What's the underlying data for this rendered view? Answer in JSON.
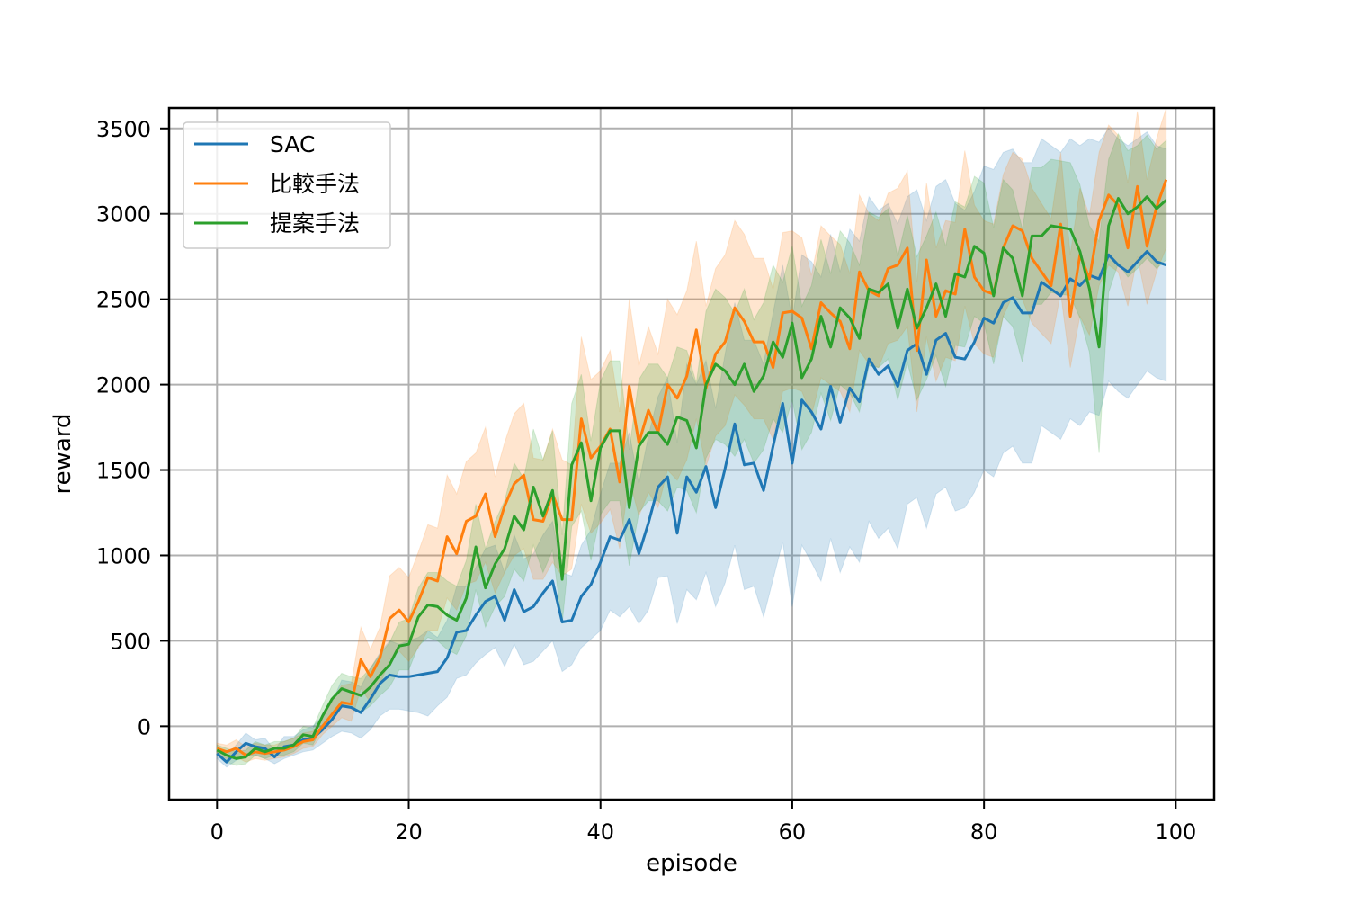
{
  "chart_data": {
    "type": "line",
    "title": "",
    "xlabel": "episode",
    "ylabel": "reward",
    "xlim": [
      -5,
      104
    ],
    "ylim": [
      -430,
      3620
    ],
    "xticks": [
      0,
      20,
      40,
      60,
      80,
      100
    ],
    "yticks": [
      0,
      500,
      1000,
      1500,
      2000,
      2500,
      3000,
      3500
    ],
    "grid": true,
    "legend_position": "top-left",
    "x": [
      0,
      1,
      2,
      3,
      4,
      5,
      6,
      7,
      8,
      9,
      10,
      11,
      12,
      13,
      14,
      15,
      16,
      17,
      18,
      19,
      20,
      21,
      22,
      23,
      24,
      25,
      26,
      27,
      28,
      29,
      30,
      31,
      32,
      33,
      34,
      35,
      36,
      37,
      38,
      39,
      40,
      41,
      42,
      43,
      44,
      45,
      46,
      47,
      48,
      49,
      50,
      51,
      52,
      53,
      54,
      55,
      56,
      57,
      58,
      59,
      60,
      61,
      62,
      63,
      64,
      65,
      66,
      67,
      68,
      69,
      70,
      71,
      72,
      73,
      74,
      75,
      76,
      77,
      78,
      79,
      80,
      81,
      82,
      83,
      84,
      85,
      86,
      87,
      88,
      89,
      90,
      91,
      92,
      93,
      94,
      95,
      96,
      97,
      98,
      99
    ],
    "series": [
      {
        "name": "SAC",
        "color": "#1f77b4",
        "values": [
          -160,
          -210,
          -150,
          -100,
          -120,
          -130,
          -180,
          -120,
          -110,
          -80,
          -70,
          -20,
          40,
          120,
          110,
          80,
          160,
          250,
          300,
          290,
          290,
          300,
          310,
          320,
          400,
          550,
          560,
          650,
          730,
          760,
          620,
          800,
          670,
          700,
          780,
          850,
          610,
          620,
          760,
          830,
          960,
          1110,
          1090,
          1210,
          1010,
          1190,
          1400,
          1460,
          1130,
          1460,
          1370,
          1520,
          1280,
          1510,
          1770,
          1530,
          1540,
          1380,
          1640,
          1890,
          1540,
          1910,
          1840,
          1740,
          1990,
          1780,
          1980,
          1900,
          2150,
          2060,
          2110,
          1990,
          2200,
          2240,
          2060,
          2260,
          2300,
          2160,
          2150,
          2250,
          2390,
          2360,
          2480,
          2510,
          2420,
          2420,
          2600,
          2560,
          2520,
          2620,
          2580,
          2640,
          2620,
          2760,
          2700,
          2660,
          2720,
          2780,
          2720,
          2700
        ],
        "lower": [
          -190,
          -240,
          -200,
          -170,
          -170,
          -190,
          -220,
          -190,
          -170,
          -150,
          -140,
          -100,
          -60,
          -30,
          -40,
          -70,
          -20,
          60,
          100,
          100,
          90,
          80,
          60,
          120,
          170,
          280,
          300,
          370,
          420,
          460,
          350,
          480,
          360,
          380,
          440,
          500,
          320,
          360,
          460,
          510,
          560,
          680,
          640,
          700,
          600,
          680,
          870,
          880,
          600,
          800,
          740,
          900,
          700,
          840,
          1060,
          800,
          820,
          640,
          860,
          1080,
          700,
          1060,
          960,
          850,
          1100,
          900,
          1050,
          960,
          1200,
          1100,
          1160,
          1040,
          1300,
          1340,
          1160,
          1360,
          1400,
          1260,
          1280,
          1370,
          1500,
          1460,
          1600,
          1640,
          1540,
          1540,
          1760,
          1720,
          1680,
          1800,
          1760,
          1840,
          1820,
          2020,
          1960,
          1920,
          2000,
          2080,
          2040,
          2020
        ],
        "upper": [
          -130,
          -170,
          -110,
          -40,
          -80,
          -70,
          -140,
          -60,
          -60,
          -20,
          0,
          60,
          140,
          270,
          260,
          230,
          340,
          430,
          500,
          480,
          500,
          520,
          560,
          520,
          620,
          820,
          820,
          930,
          1040,
          1060,
          900,
          1120,
          980,
          1010,
          1120,
          1200,
          900,
          880,
          1060,
          1150,
          1360,
          1540,
          1540,
          1720,
          1420,
          1700,
          1930,
          2040,
          1660,
          2120,
          2000,
          2140,
          1860,
          2180,
          2480,
          2260,
          2260,
          2120,
          2420,
          2700,
          2380,
          2760,
          2720,
          2630,
          2880,
          2660,
          2910,
          2840,
          3100,
          3020,
          3060,
          2940,
          3100,
          3140,
          2960,
          3160,
          3200,
          3060,
          3020,
          3130,
          3280,
          3260,
          3360,
          3380,
          3300,
          3300,
          3440,
          3400,
          3360,
          3440,
          3400,
          3440,
          3420,
          3500,
          3440,
          3400,
          3440,
          3480,
          3400,
          3380
        ]
      },
      {
        "name": "比較手法",
        "color": "#ff7f0e",
        "values": [
          -130,
          -150,
          -130,
          -170,
          -150,
          -160,
          -150,
          -140,
          -120,
          -90,
          -80,
          0,
          70,
          140,
          130,
          390,
          290,
          400,
          630,
          680,
          610,
          730,
          870,
          850,
          1110,
          1010,
          1200,
          1230,
          1360,
          1110,
          1290,
          1420,
          1470,
          1210,
          1200,
          1360,
          1210,
          1210,
          1800,
          1570,
          1640,
          1740,
          1430,
          1990,
          1660,
          1850,
          1720,
          2000,
          1920,
          2050,
          2320,
          1980,
          2180,
          2250,
          2450,
          2370,
          2250,
          2250,
          2100,
          2420,
          2430,
          2390,
          2210,
          2480,
          2420,
          2370,
          2210,
          2660,
          2550,
          2520,
          2680,
          2700,
          2800,
          2200,
          2730,
          2400,
          2550,
          2530,
          2910,
          2630,
          2550,
          2530,
          2800,
          2930,
          2900,
          2740,
          2660,
          2580,
          2940,
          2400,
          2760,
          2620,
          2960,
          3110,
          3050,
          2800,
          3160,
          2810,
          3040,
          3200
        ],
        "lower": [
          -160,
          -190,
          -180,
          -210,
          -190,
          -200,
          -190,
          -180,
          -160,
          -130,
          -120,
          -50,
          0,
          50,
          30,
          220,
          140,
          240,
          390,
          440,
          380,
          460,
          560,
          560,
          750,
          680,
          830,
          850,
          960,
          780,
          900,
          1000,
          1040,
          860,
          860,
          960,
          880,
          920,
          1300,
          1130,
          1190,
          1270,
          1040,
          1450,
          1230,
          1370,
          1280,
          1500,
          1440,
          1560,
          1800,
          1520,
          1700,
          1760,
          1940,
          1880,
          1800,
          1800,
          1680,
          1960,
          1980,
          1960,
          1820,
          2040,
          2000,
          1960,
          1840,
          2200,
          2120,
          2100,
          2240,
          2260,
          2340,
          1840,
          2280,
          2020,
          2160,
          2140,
          2460,
          2240,
          2180,
          2160,
          2400,
          2520,
          2500,
          2360,
          2300,
          2240,
          2540,
          2100,
          2400,
          2290,
          2580,
          2700,
          2660,
          2460,
          2750,
          2470,
          2660,
          2800
        ],
        "upper": [
          -100,
          -110,
          -80,
          -120,
          -100,
          -110,
          -110,
          -90,
          -70,
          -40,
          -30,
          60,
          150,
          240,
          250,
          580,
          450,
          580,
          880,
          930,
          870,
          1020,
          1180,
          1160,
          1470,
          1360,
          1550,
          1600,
          1750,
          1460,
          1660,
          1830,
          1890,
          1570,
          1560,
          1740,
          1560,
          1530,
          2280,
          2030,
          2080,
          2200,
          1840,
          2500,
          2110,
          2340,
          2180,
          2500,
          2410,
          2550,
          2840,
          2460,
          2680,
          2760,
          2960,
          2880,
          2740,
          2740,
          2560,
          2890,
          2900,
          2860,
          2640,
          2930,
          2870,
          2820,
          2650,
          3110,
          3000,
          2960,
          3120,
          3150,
          3250,
          2600,
          3180,
          2800,
          2960,
          2950,
          3370,
          3050,
          2960,
          2940,
          3230,
          3360,
          3320,
          3150,
          3060,
          2970,
          3360,
          2760,
          3150,
          2990,
          3360,
          3520,
          3460,
          3180,
          3600,
          3200,
          3440,
          3620
        ]
      },
      {
        "name": "提案手法",
        "color": "#2ca02c",
        "values": [
          -140,
          -170,
          -190,
          -180,
          -130,
          -150,
          -130,
          -130,
          -110,
          -50,
          -60,
          60,
          160,
          220,
          200,
          180,
          230,
          300,
          360,
          470,
          480,
          640,
          710,
          700,
          650,
          620,
          750,
          1050,
          810,
          950,
          1040,
          1230,
          1150,
          1400,
          1230,
          1380,
          860,
          1530,
          1660,
          1320,
          1630,
          1730,
          1730,
          1280,
          1640,
          1720,
          1720,
          1650,
          1810,
          1790,
          1630,
          2000,
          2120,
          2080,
          2000,
          2120,
          1960,
          2050,
          2250,
          2160,
          2360,
          2040,
          2150,
          2400,
          2220,
          2450,
          2390,
          2270,
          2560,
          2540,
          2590,
          2330,
          2560,
          2330,
          2450,
          2590,
          2400,
          2650,
          2630,
          2810,
          2770,
          2520,
          2800,
          2740,
          2520,
          2870,
          2870,
          2930,
          2920,
          2910,
          2780,
          2560,
          2220,
          2930,
          3090,
          3000,
          3040,
          3100,
          3030,
          3080
        ],
        "lower": [
          -170,
          -210,
          -230,
          -220,
          -170,
          -190,
          -170,
          -170,
          -150,
          -100,
          -110,
          0,
          80,
          130,
          110,
          80,
          120,
          180,
          230,
          330,
          330,
          470,
          520,
          500,
          450,
          420,
          530,
          800,
          580,
          700,
          760,
          920,
          850,
          1060,
          900,
          1030,
          600,
          1170,
          1260,
          970,
          1240,
          1320,
          1320,
          940,
          1250,
          1320,
          1320,
          1260,
          1400,
          1380,
          1250,
          1570,
          1680,
          1650,
          1580,
          1680,
          1540,
          1620,
          1800,
          1720,
          1910,
          1620,
          1720,
          1950,
          1790,
          2000,
          1950,
          1840,
          2110,
          2100,
          2150,
          1910,
          2130,
          1910,
          2030,
          2170,
          1990,
          2230,
          2220,
          2400,
          2360,
          2120,
          2400,
          2340,
          2130,
          2470,
          2470,
          2540,
          2530,
          2520,
          2390,
          2190,
          1600,
          2540,
          2710,
          2630,
          2680,
          2740,
          2680,
          2730
        ],
        "upper": [
          -110,
          -130,
          -150,
          -140,
          -90,
          -110,
          -90,
          -90,
          -70,
          0,
          -10,
          120,
          240,
          310,
          290,
          280,
          340,
          420,
          490,
          610,
          630,
          810,
          900,
          900,
          850,
          820,
          970,
          1300,
          1040,
          1200,
          1320,
          1540,
          1450,
          1740,
          1560,
          1730,
          1120,
          1890,
          2060,
          1670,
          2020,
          2140,
          2140,
          1620,
          2030,
          2120,
          2120,
          2040,
          2220,
          2200,
          2010,
          2430,
          2560,
          2510,
          2420,
          2560,
          2380,
          2480,
          2700,
          2600,
          2810,
          2460,
          2580,
          2850,
          2650,
          2900,
          2830,
          2700,
          3010,
          2980,
          3030,
          2750,
          2990,
          2750,
          2870,
          3010,
          2810,
          3070,
          3040,
          3220,
          3180,
          2920,
          3200,
          3140,
          2910,
          3270,
          3270,
          3320,
          3310,
          3300,
          3170,
          2930,
          2840,
          3320,
          3470,
          3370,
          3400,
          3460,
          3380,
          3430
        ]
      }
    ]
  }
}
